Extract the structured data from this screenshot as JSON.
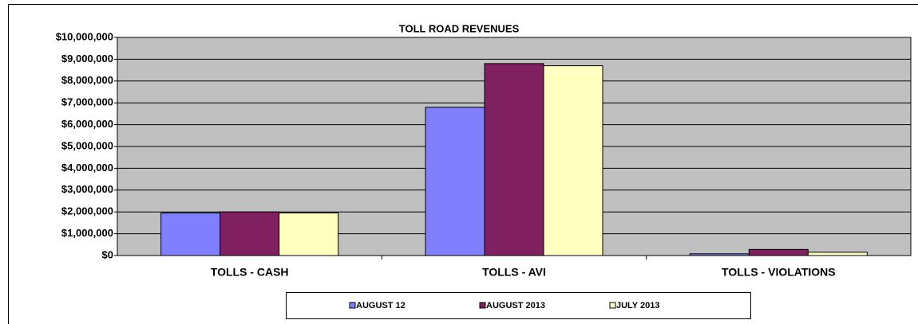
{
  "chart_data": {
    "type": "bar",
    "title": "TOLL ROAD REVENUES",
    "categories": [
      "TOLLS - CASH",
      "TOLLS - AVI",
      "TOLLS - VIOLATIONS"
    ],
    "series": [
      {
        "name": "AUGUST 12",
        "color": "#8080ff",
        "values": [
          1950000,
          6800000,
          80000
        ]
      },
      {
        "name": "AUGUST 2013",
        "color": "#802060",
        "values": [
          2000000,
          8800000,
          280000
        ]
      },
      {
        "name": "JULY 2013",
        "color": "#ffffc0",
        "values": [
          1950000,
          8700000,
          150000
        ]
      }
    ],
    "ylim": [
      0,
      10000000
    ],
    "yticks": [
      {
        "value": 0,
        "label": "$0"
      },
      {
        "value": 1000000,
        "label": "$1,000,000"
      },
      {
        "value": 2000000,
        "label": "$2,000,000"
      },
      {
        "value": 3000000,
        "label": "$3,000,000"
      },
      {
        "value": 4000000,
        "label": "$4,000,000"
      },
      {
        "value": 5000000,
        "label": "$5,000,000"
      },
      {
        "value": 6000000,
        "label": "$6,000,000"
      },
      {
        "value": 7000000,
        "label": "$7,000,000"
      },
      {
        "value": 8000000,
        "label": "$8,000,000"
      },
      {
        "value": 9000000,
        "label": "$9,000,000"
      },
      {
        "value": 10000000,
        "label": "$10,000,000"
      }
    ],
    "grid": true,
    "plot_background": "#c0c0c0",
    "legend": "bottom"
  }
}
